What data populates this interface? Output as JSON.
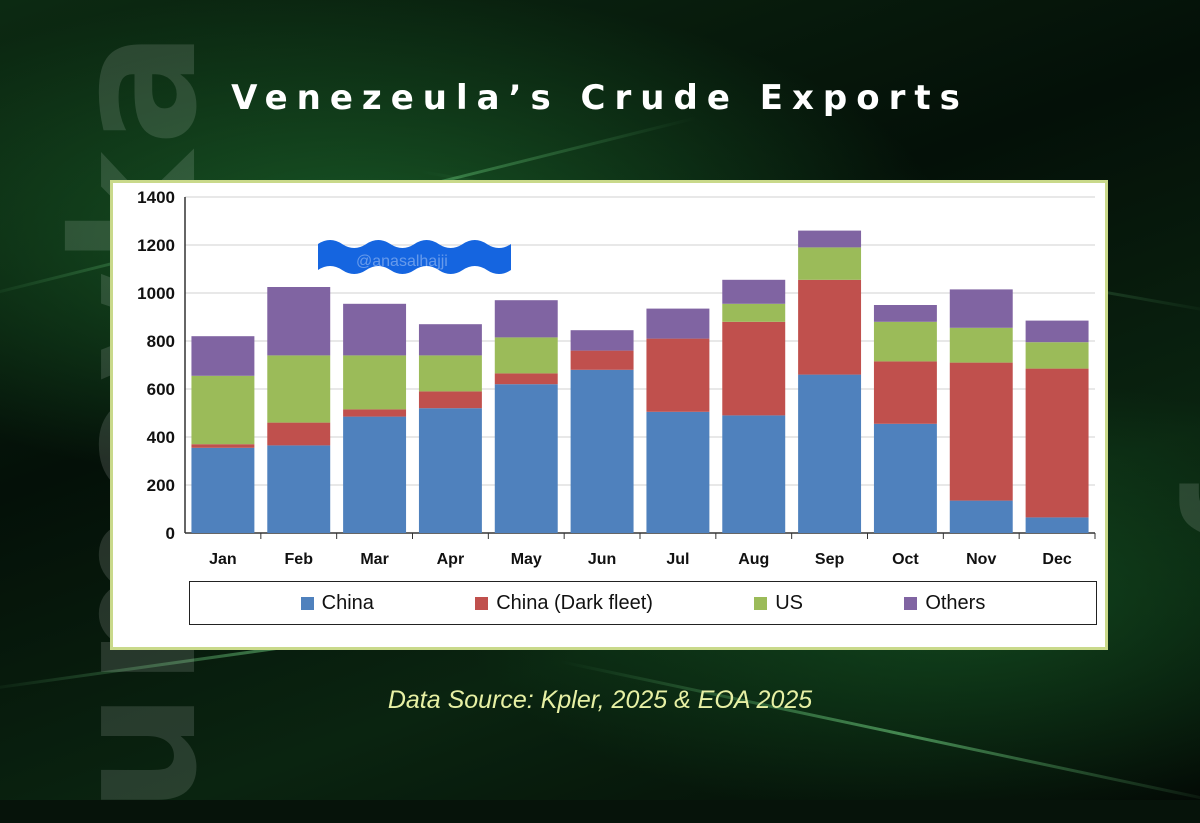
{
  "title": "Venezeula’s Crude Exports",
  "source": "Data Source: Kpler, 2025 & EOA 2025",
  "watermark": {
    "left": "umeyka",
    "right": "umeyka",
    "overlay": "@anasalhajji"
  },
  "colors": {
    "China": "#4f81bd",
    "China (Dark fleet)": "#c0504d",
    "US": "#9bbb59",
    "Others": "#8064a2",
    "wave": "#1565e0"
  },
  "chart_data": {
    "type": "bar",
    "stacked": true,
    "categories": [
      "Jan",
      "Feb",
      "Mar",
      "Apr",
      "May",
      "Jun",
      "Jul",
      "Aug",
      "Sep",
      "Oct",
      "Nov",
      "Dec"
    ],
    "series": [
      {
        "name": "China",
        "values": [
          355,
          365,
          485,
          520,
          620,
          680,
          505,
          490,
          660,
          455,
          135,
          65
        ]
      },
      {
        "name": "China (Dark fleet)",
        "values": [
          15,
          95,
          30,
          70,
          45,
          80,
          305,
          390,
          395,
          260,
          575,
          620
        ]
      },
      {
        "name": "US",
        "values": [
          285,
          280,
          225,
          150,
          150,
          0,
          0,
          75,
          135,
          165,
          145,
          110
        ]
      },
      {
        "name": "Others",
        "values": [
          165,
          285,
          215,
          130,
          155,
          85,
          125,
          100,
          70,
          70,
          160,
          90
        ]
      }
    ],
    "ylim": [
      0,
      1400
    ],
    "yticks": [
      0,
      200,
      400,
      600,
      800,
      1000,
      1200,
      1400
    ],
    "grid": true,
    "legend": "bottom"
  }
}
